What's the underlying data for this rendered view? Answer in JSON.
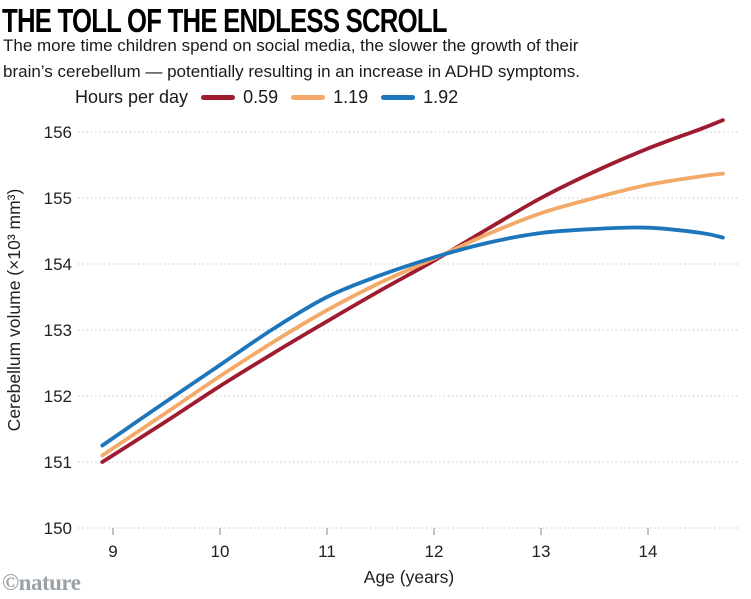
{
  "header": {
    "title": "THE TOLL OF THE ENDLESS SCROLL",
    "subtitle_line1": "The more time children spend on social media, the slower the growth of their",
    "subtitle_line2": "brain’s cerebellum — potentially resulting in an increase in ADHD symptoms."
  },
  "legend": {
    "label": "Hours per day",
    "items": [
      {
        "label": "0.59",
        "color": "#9e1b30"
      },
      {
        "label": "1.19",
        "color": "#f3a968"
      },
      {
        "label": "1.92",
        "color": "#1d76bb"
      }
    ]
  },
  "chart_data": {
    "type": "line",
    "title": "THE TOLL OF THE ENDLESS SCROLL",
    "xlabel": "Age (years)",
    "ylabel": "Cerebellum volume (×10³ mm³)",
    "x_ticks": [
      9,
      10,
      11,
      12,
      13,
      14
    ],
    "y_ticks": [
      150,
      151,
      152,
      153,
      154,
      155,
      156
    ],
    "xlim": [
      8.67,
      14.87
    ],
    "ylim": [
      150,
      156
    ],
    "grid": "horizontal-dashed",
    "legend_position": "top",
    "x": [
      8.9,
      9.5,
      10,
      10.5,
      11,
      11.5,
      12,
      12.5,
      13,
      13.5,
      14,
      14.5,
      14.7
    ],
    "series": [
      {
        "name": "0.59",
        "color": "#9e1b30",
        "values": [
          151.0,
          151.62,
          152.15,
          152.65,
          153.13,
          153.6,
          154.05,
          154.53,
          155.0,
          155.4,
          155.75,
          156.05,
          156.18
        ]
      },
      {
        "name": "1.19",
        "color": "#f3a968",
        "values": [
          151.1,
          151.75,
          152.3,
          152.82,
          153.3,
          153.72,
          154.08,
          154.45,
          154.77,
          155.0,
          155.2,
          155.33,
          155.37
        ]
      },
      {
        "name": "1.92",
        "color": "#1d76bb",
        "values": [
          151.25,
          151.92,
          152.47,
          153.02,
          153.5,
          153.83,
          154.1,
          154.32,
          154.47,
          154.53,
          154.55,
          154.47,
          154.4
        ]
      }
    ],
    "style": {
      "grid_color": "#c8c8c8",
      "tick_color": "#8a8a8a",
      "label_color": "#222222",
      "line_width": 3.8
    }
  },
  "footer": {
    "credit": "©nature"
  }
}
